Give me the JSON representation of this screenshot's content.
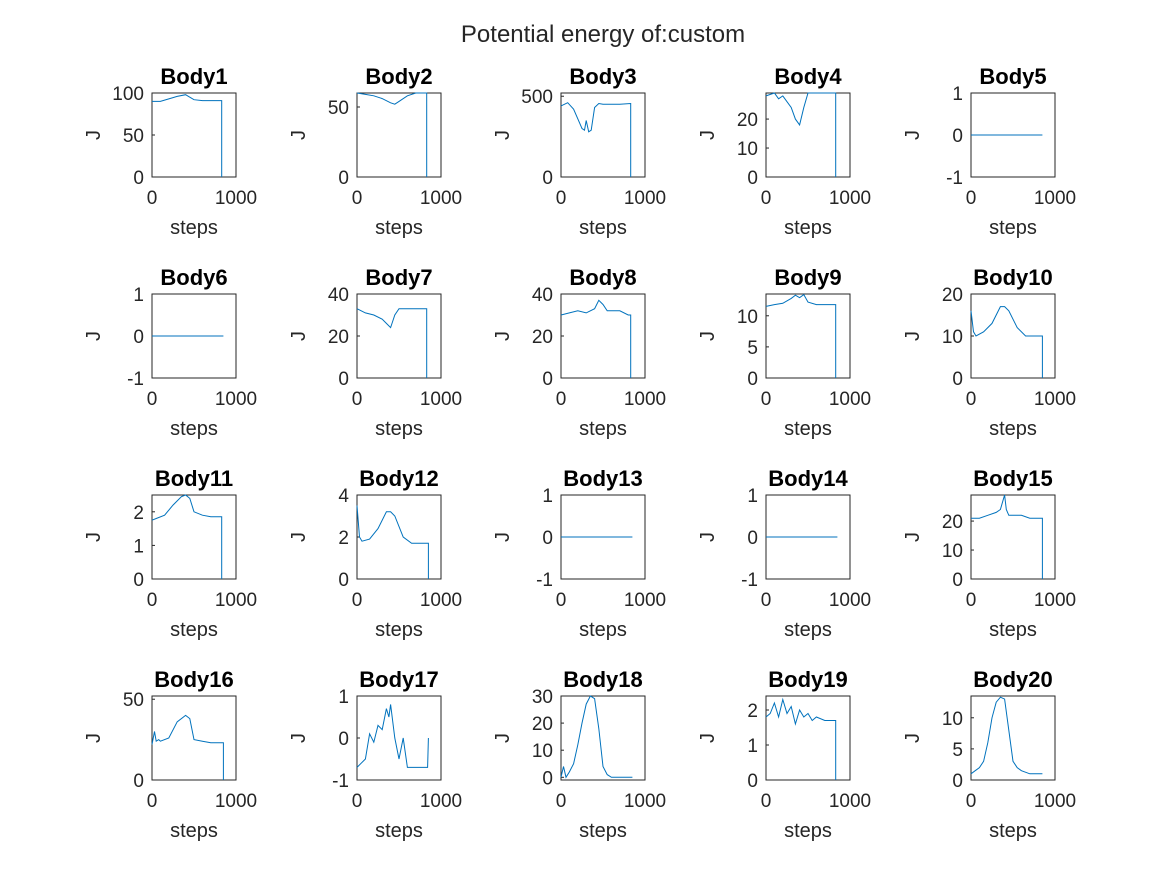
{
  "figure": {
    "title": "Potential energy of:custom"
  },
  "colors": {
    "line": "#0072bd",
    "axes": "#262626",
    "background": "#ffffff"
  },
  "chart_data": [
    {
      "type": "line",
      "title": "Body1",
      "xlabel": "steps",
      "ylabel": "J",
      "xlim": [
        0,
        1000
      ],
      "ylim": [
        0,
        100
      ],
      "xticks": [
        0,
        1000
      ],
      "yticks": [
        0,
        50,
        100
      ],
      "series": [
        {
          "x": [
            0,
            100,
            200,
            300,
            400,
            450,
            500,
            600,
            700,
            780,
            830,
            830
          ],
          "y": [
            90,
            90,
            93,
            96,
            98,
            95,
            92,
            91,
            91,
            91,
            91,
            0
          ]
        }
      ]
    },
    {
      "type": "line",
      "title": "Body2",
      "xlabel": "steps",
      "ylabel": "J",
      "xlim": [
        0,
        1000
      ],
      "ylim": [
        0,
        60
      ],
      "xticks": [
        0,
        1000
      ],
      "yticks": [
        0,
        50
      ],
      "series": [
        {
          "x": [
            0,
            100,
            200,
            300,
            400,
            450,
            500,
            600,
            700,
            800,
            830,
            830
          ],
          "y": [
            60,
            59,
            58,
            56,
            53,
            52,
            54,
            58,
            60,
            60,
            60,
            0
          ]
        }
      ]
    },
    {
      "type": "line",
      "title": "Body3",
      "xlabel": "steps",
      "ylabel": "J",
      "xlim": [
        0,
        1000
      ],
      "ylim": [
        0,
        520
      ],
      "xticks": [
        0,
        1000
      ],
      "yticks": [
        0,
        500
      ],
      "series": [
        {
          "x": [
            0,
            80,
            150,
            200,
            250,
            280,
            300,
            330,
            360,
            380,
            400,
            450,
            500,
            600,
            700,
            830,
            830
          ],
          "y": [
            440,
            460,
            420,
            360,
            300,
            290,
            350,
            280,
            290,
            360,
            430,
            455,
            450,
            450,
            450,
            455,
            0
          ]
        }
      ]
    },
    {
      "type": "line",
      "title": "Body4",
      "xlabel": "steps",
      "ylabel": "J",
      "xlim": [
        0,
        1000
      ],
      "ylim": [
        0,
        29
      ],
      "xticks": [
        0,
        1000
      ],
      "yticks": [
        0,
        10,
        20
      ],
      "series": [
        {
          "x": [
            0,
            100,
            150,
            200,
            300,
            350,
            400,
            450,
            500,
            600,
            700,
            830,
            830
          ],
          "y": [
            28,
            29,
            27,
            28,
            24,
            20,
            18,
            24,
            29,
            29,
            29,
            29,
            0
          ]
        }
      ]
    },
    {
      "type": "line",
      "title": "Body5",
      "xlabel": "steps",
      "ylabel": "J",
      "xlim": [
        0,
        1000
      ],
      "ylim": [
        -1,
        1
      ],
      "xticks": [
        0,
        1000
      ],
      "yticks": [
        -1,
        0,
        1
      ],
      "series": [
        {
          "x": [
            0,
            850
          ],
          "y": [
            0,
            0
          ]
        }
      ]
    },
    {
      "type": "line",
      "title": "Body6",
      "xlabel": "steps",
      "ylabel": "J",
      "xlim": [
        0,
        1000
      ],
      "ylim": [
        -1,
        1
      ],
      "xticks": [
        0,
        1000
      ],
      "yticks": [
        -1,
        0,
        1
      ],
      "series": [
        {
          "x": [
            0,
            850
          ],
          "y": [
            0,
            0
          ]
        }
      ]
    },
    {
      "type": "line",
      "title": "Body7",
      "xlabel": "steps",
      "ylabel": "J",
      "xlim": [
        0,
        1000
      ],
      "ylim": [
        0,
        40
      ],
      "xticks": [
        0,
        1000
      ],
      "yticks": [
        0,
        20,
        40
      ],
      "series": [
        {
          "x": [
            0,
            50,
            100,
            200,
            300,
            350,
            400,
            450,
            500,
            600,
            700,
            820,
            830,
            830
          ],
          "y": [
            33,
            32,
            31,
            30,
            28,
            26,
            24,
            30,
            33,
            33,
            33,
            33,
            33,
            0
          ]
        }
      ]
    },
    {
      "type": "line",
      "title": "Body8",
      "xlabel": "steps",
      "ylabel": "J",
      "xlim": [
        0,
        1000
      ],
      "ylim": [
        0,
        40
      ],
      "xticks": [
        0,
        1000
      ],
      "yticks": [
        0,
        20,
        40
      ],
      "series": [
        {
          "x": [
            0,
            100,
            200,
            300,
            400,
            450,
            500,
            550,
            600,
            700,
            800,
            830,
            830
          ],
          "y": [
            30,
            31,
            32,
            31,
            33,
            37,
            35,
            32,
            32,
            32,
            30,
            30,
            0
          ]
        }
      ]
    },
    {
      "type": "line",
      "title": "Body9",
      "xlabel": "steps",
      "ylabel": "J",
      "xlim": [
        0,
        1000
      ],
      "ylim": [
        0,
        13.5
      ],
      "xticks": [
        0,
        1000
      ],
      "yticks": [
        0,
        5,
        10
      ],
      "series": [
        {
          "x": [
            0,
            100,
            200,
            300,
            350,
            400,
            450,
            500,
            600,
            700,
            830,
            830
          ],
          "y": [
            11.5,
            11.8,
            12,
            12.8,
            13.3,
            12.9,
            13.4,
            12.2,
            11.8,
            11.8,
            11.8,
            0
          ]
        }
      ]
    },
    {
      "type": "line",
      "title": "Body10",
      "xlabel": "steps",
      "ylabel": "J",
      "xlim": [
        0,
        1000
      ],
      "ylim": [
        0,
        20
      ],
      "xticks": [
        0,
        1000
      ],
      "yticks": [
        0,
        10,
        20
      ],
      "series": [
        {
          "x": [
            0,
            30,
            60,
            150,
            250,
            350,
            400,
            450,
            550,
            650,
            750,
            850,
            850
          ],
          "y": [
            16,
            11,
            10,
            11,
            13,
            17,
            17,
            16,
            12,
            10,
            10,
            10,
            0
          ]
        }
      ]
    },
    {
      "type": "line",
      "title": "Body11",
      "xlabel": "steps",
      "ylabel": "J",
      "xlim": [
        0,
        1000
      ],
      "ylim": [
        0,
        2.5
      ],
      "xticks": [
        0,
        1000
      ],
      "yticks": [
        0,
        1,
        2
      ],
      "series": [
        {
          "x": [
            0,
            50,
            150,
            250,
            350,
            400,
            450,
            500,
            600,
            700,
            830,
            830
          ],
          "y": [
            1.75,
            1.8,
            1.9,
            2.2,
            2.45,
            2.5,
            2.4,
            2.0,
            1.9,
            1.85,
            1.85,
            0
          ]
        }
      ]
    },
    {
      "type": "line",
      "title": "Body12",
      "xlabel": "steps",
      "ylabel": "J",
      "xlim": [
        0,
        1000
      ],
      "ylim": [
        0,
        4
      ],
      "xticks": [
        0,
        1000
      ],
      "yticks": [
        0,
        2,
        4
      ],
      "series": [
        {
          "x": [
            0,
            30,
            60,
            150,
            250,
            350,
            400,
            450,
            550,
            650,
            750,
            850,
            850
          ],
          "y": [
            3.5,
            2.0,
            1.8,
            1.9,
            2.4,
            3.2,
            3.2,
            3.0,
            2.0,
            1.7,
            1.7,
            1.7,
            0
          ]
        }
      ]
    },
    {
      "type": "line",
      "title": "Body13",
      "xlabel": "steps",
      "ylabel": "J",
      "xlim": [
        0,
        1000
      ],
      "ylim": [
        -1,
        1
      ],
      "xticks": [
        0,
        1000
      ],
      "yticks": [
        -1,
        0,
        1
      ],
      "series": [
        {
          "x": [
            0,
            850
          ],
          "y": [
            0,
            0
          ]
        }
      ]
    },
    {
      "type": "line",
      "title": "Body14",
      "xlabel": "steps",
      "ylabel": "J",
      "xlim": [
        0,
        1000
      ],
      "ylim": [
        -1,
        1
      ],
      "xticks": [
        0,
        1000
      ],
      "yticks": [
        -1,
        0,
        1
      ],
      "series": [
        {
          "x": [
            0,
            850
          ],
          "y": [
            0,
            0
          ]
        }
      ]
    },
    {
      "type": "line",
      "title": "Body15",
      "xlabel": "steps",
      "ylabel": "J",
      "xlim": [
        0,
        1000
      ],
      "ylim": [
        0,
        29
      ],
      "xticks": [
        0,
        1000
      ],
      "yticks": [
        0,
        10,
        20
      ],
      "series": [
        {
          "x": [
            0,
            100,
            200,
            300,
            350,
            380,
            400,
            420,
            450,
            500,
            600,
            700,
            850,
            850
          ],
          "y": [
            21,
            21,
            22,
            23,
            24,
            27,
            29,
            24,
            22,
            22,
            22,
            21,
            21,
            0
          ]
        }
      ]
    },
    {
      "type": "line",
      "title": "Body16",
      "xlabel": "steps",
      "ylabel": "J",
      "xlim": [
        0,
        1000
      ],
      "ylim": [
        0,
        52
      ],
      "xticks": [
        0,
        1000
      ],
      "yticks": [
        0,
        50
      ],
      "series": [
        {
          "x": [
            0,
            30,
            50,
            80,
            100,
            200,
            300,
            400,
            450,
            500,
            600,
            700,
            850,
            850
          ],
          "y": [
            22,
            30,
            24,
            25,
            24,
            26,
            36,
            40,
            38,
            25,
            24,
            23,
            23,
            0
          ]
        }
      ]
    },
    {
      "type": "line",
      "title": "Body17",
      "xlabel": "steps",
      "ylabel": "J",
      "xlim": [
        0,
        1000
      ],
      "ylim": [
        -1,
        1
      ],
      "xticks": [
        0,
        1000
      ],
      "yticks": [
        -1,
        0,
        1
      ],
      "series": [
        {
          "x": [
            0,
            50,
            100,
            150,
            200,
            250,
            300,
            350,
            380,
            400,
            450,
            500,
            550,
            600,
            700,
            840,
            850
          ],
          "y": [
            -0.7,
            -0.6,
            -0.5,
            0.1,
            -0.1,
            0.3,
            0.2,
            0.7,
            0.5,
            0.8,
            0.0,
            -0.5,
            0.0,
            -0.7,
            -0.7,
            -0.7,
            0.0
          ]
        }
      ]
    },
    {
      "type": "line",
      "title": "Body18",
      "xlabel": "steps",
      "ylabel": "J",
      "xlim": [
        0,
        1000
      ],
      "ylim": [
        -1,
        30
      ],
      "xticks": [
        0,
        1000
      ],
      "yticks": [
        0,
        10,
        20,
        30
      ],
      "series": [
        {
          "x": [
            0,
            30,
            60,
            100,
            150,
            200,
            250,
            300,
            350,
            400,
            450,
            500,
            550,
            600,
            700,
            850
          ],
          "y": [
            0,
            4,
            0,
            2,
            5,
            12,
            20,
            27,
            30,
            29,
            18,
            4,
            1,
            0,
            0,
            0
          ]
        }
      ]
    },
    {
      "type": "line",
      "title": "Body19",
      "xlabel": "steps",
      "ylabel": "J",
      "xlim": [
        0,
        1000
      ],
      "ylim": [
        0,
        2.4
      ],
      "xticks": [
        0,
        1000
      ],
      "yticks": [
        0,
        1,
        2
      ],
      "series": [
        {
          "x": [
            0,
            50,
            100,
            150,
            200,
            250,
            300,
            350,
            400,
            450,
            500,
            550,
            600,
            700,
            830,
            830
          ],
          "y": [
            1.8,
            1.9,
            2.2,
            1.8,
            2.3,
            1.9,
            2.1,
            1.6,
            2.0,
            1.8,
            1.9,
            1.7,
            1.8,
            1.7,
            1.7,
            0
          ]
        }
      ]
    },
    {
      "type": "line",
      "title": "Body20",
      "xlabel": "steps",
      "ylabel": "J",
      "xlim": [
        0,
        1000
      ],
      "ylim": [
        0,
        13.5
      ],
      "xticks": [
        0,
        1000
      ],
      "yticks": [
        0,
        5,
        10
      ],
      "series": [
        {
          "x": [
            0,
            50,
            100,
            150,
            200,
            250,
            300,
            350,
            400,
            450,
            500,
            550,
            600,
            700,
            850
          ],
          "y": [
            1,
            1.5,
            2,
            3,
            6,
            10,
            12.5,
            13.3,
            13,
            8,
            3,
            2,
            1.5,
            1,
            1
          ]
        }
      ]
    }
  ]
}
